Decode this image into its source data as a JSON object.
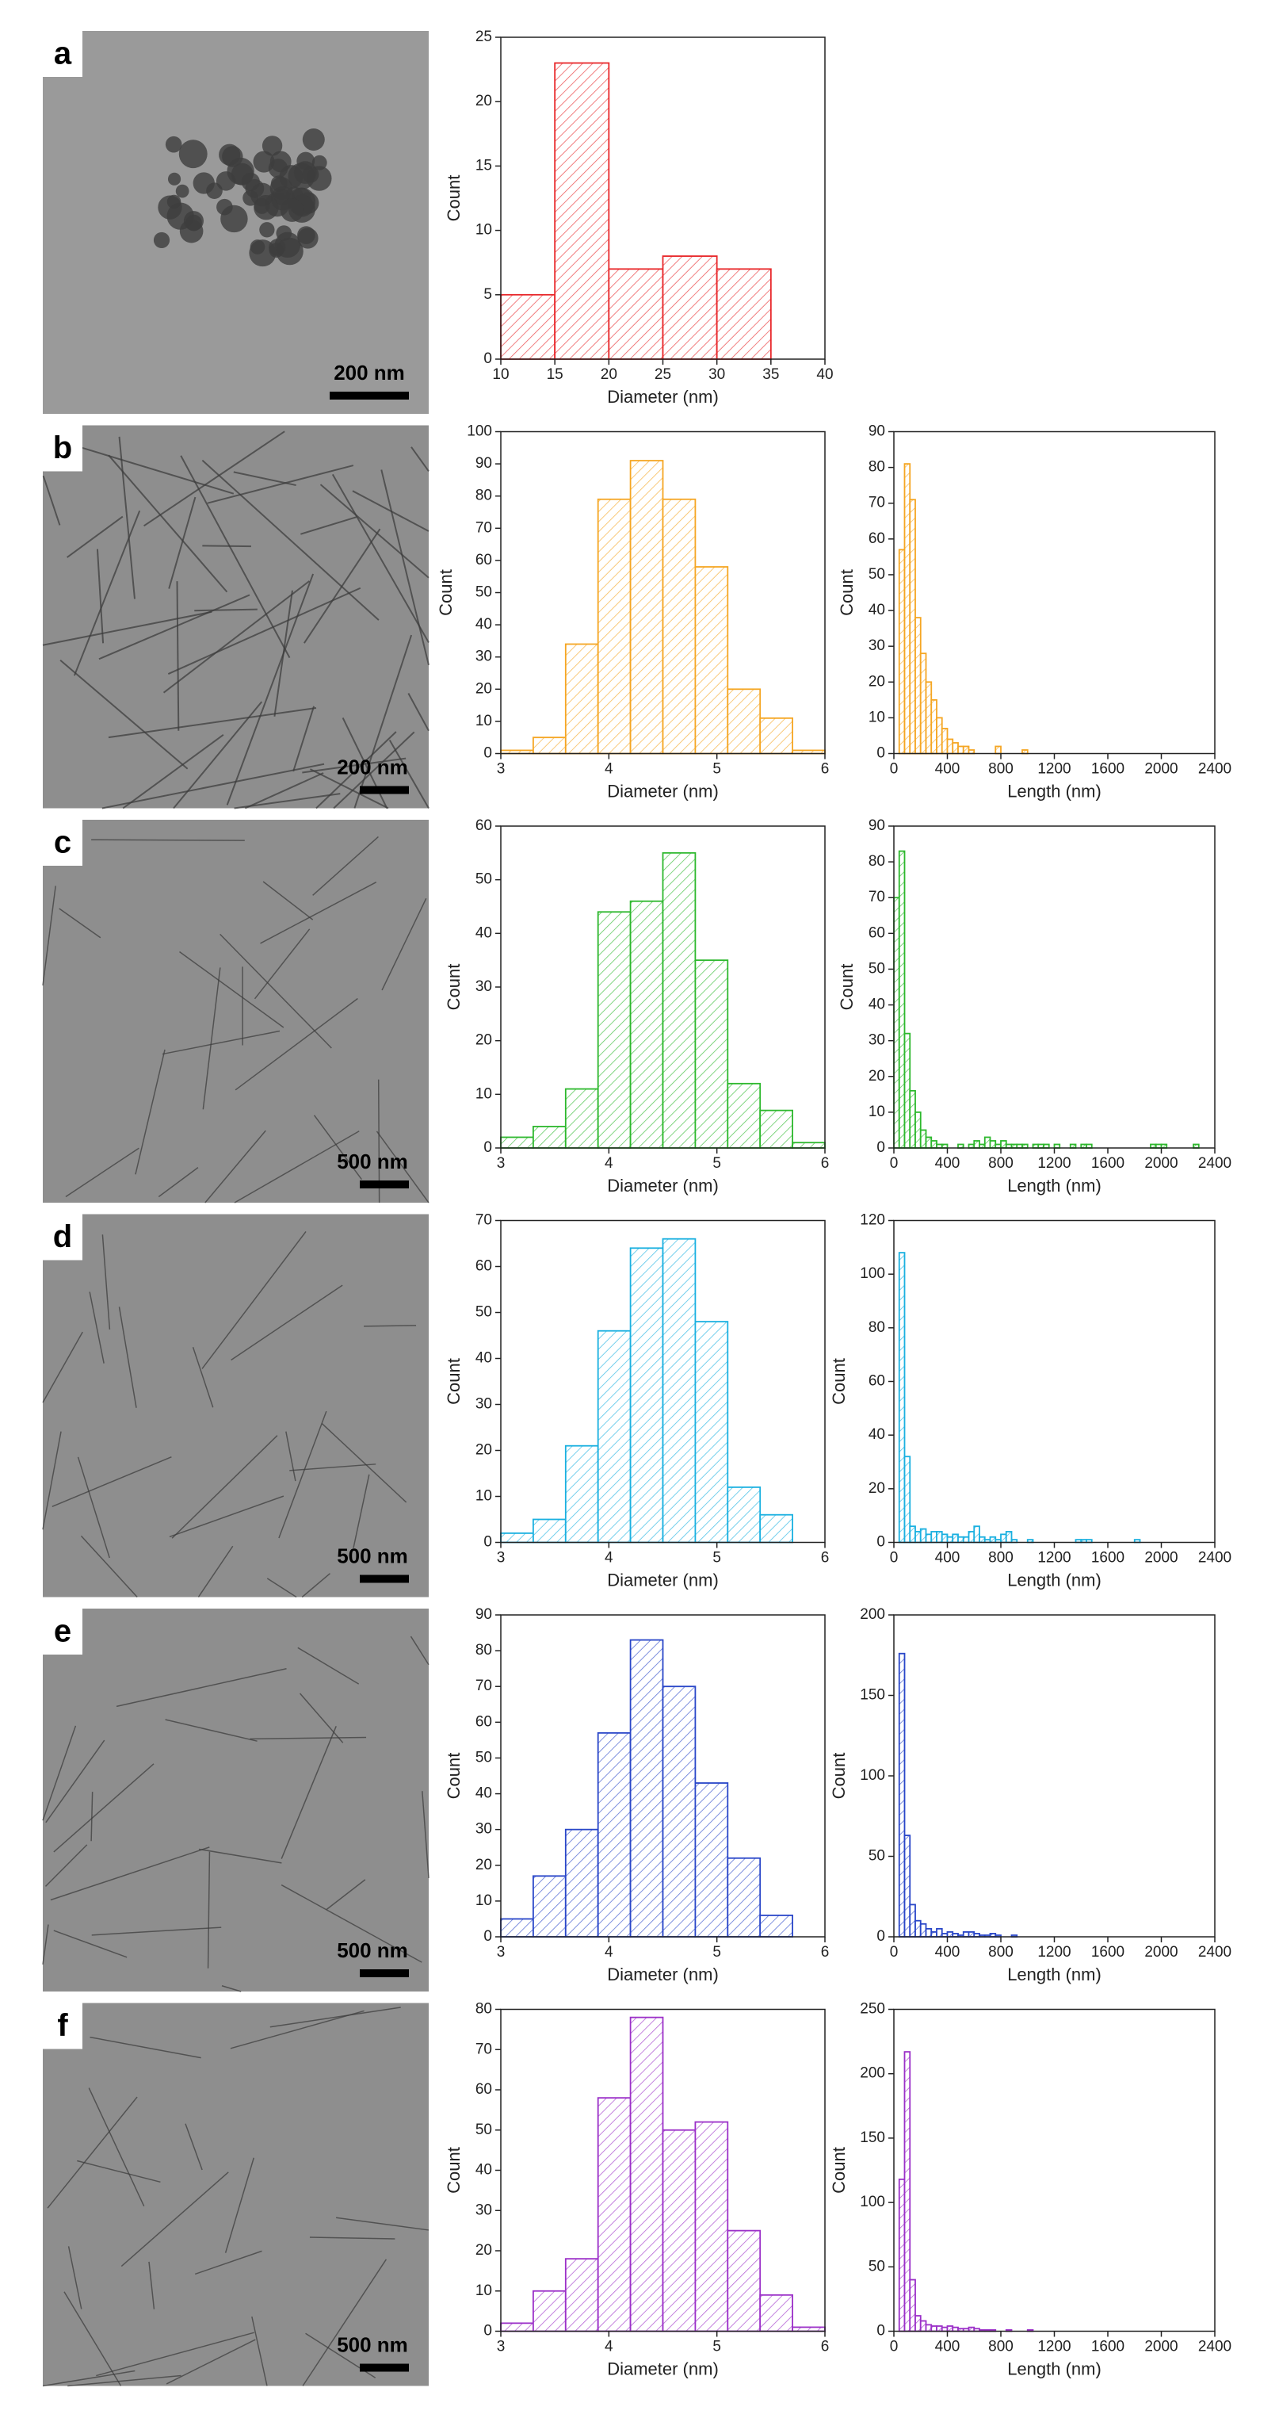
{
  "panels": [
    {
      "label": "a",
      "scale_bar": "200 nm"
    },
    {
      "label": "b",
      "scale_bar": "200 nm"
    },
    {
      "label": "c",
      "scale_bar": "500 nm"
    },
    {
      "label": "d",
      "scale_bar": "500 nm"
    },
    {
      "label": "e",
      "scale_bar": "500 nm"
    },
    {
      "label": "f",
      "scale_bar": "500 nm"
    }
  ],
  "chart_data": [
    {
      "type": "histogram",
      "xlabel": "Diameter (nm)",
      "ylabel": "Count",
      "color": "#e8272a",
      "bins": [
        10,
        15,
        20,
        25,
        30,
        35
      ],
      "counts": [
        5,
        23,
        7,
        8,
        7
      ],
      "xlim": [
        10,
        40
      ],
      "xticks": [
        10,
        15,
        20,
        25,
        30,
        35,
        40
      ],
      "ylim": [
        0,
        25
      ],
      "yticks": [
        0,
        5,
        10,
        15,
        20,
        25
      ]
    },
    {
      "type": "histogram",
      "xlabel": "Diameter (nm)",
      "ylabel": "Count",
      "color": "#f5a623",
      "bins": [
        3.0,
        3.3,
        3.6,
        3.9,
        4.2,
        4.5,
        4.8,
        5.1,
        5.4,
        5.7,
        6.0
      ],
      "counts": [
        1,
        5,
        34,
        79,
        91,
        79,
        58,
        20,
        11,
        1
      ],
      "xlim": [
        3,
        6
      ],
      "xticks": [
        3,
        4,
        5,
        6
      ],
      "ylim": [
        0,
        100
      ],
      "yticks": [
        0,
        10,
        20,
        30,
        40,
        50,
        60,
        70,
        80,
        90,
        100
      ]
    },
    {
      "type": "histogram",
      "xlabel": "Length (nm)",
      "ylabel": "Count",
      "color": "#f5a623",
      "bins": [
        40,
        80,
        120,
        160,
        200,
        240,
        280,
        320,
        360,
        400,
        440,
        480,
        520,
        560,
        600,
        640,
        680,
        720,
        760,
        800,
        840,
        880,
        920,
        960,
        1000
      ],
      "counts": [
        57,
        81,
        71,
        38,
        28,
        20,
        15,
        10,
        7,
        4,
        3,
        2,
        2,
        1,
        0,
        0,
        0,
        0,
        2,
        0,
        0,
        0,
        0,
        1
      ],
      "xlim": [
        0,
        2400
      ],
      "xticks": [
        0,
        400,
        800,
        1200,
        1600,
        2000,
        2400
      ],
      "ylim": [
        0,
        90
      ],
      "yticks": [
        0,
        10,
        20,
        30,
        40,
        50,
        60,
        70,
        80,
        90
      ]
    },
    {
      "type": "histogram",
      "xlabel": "Diameter (nm)",
      "ylabel": "Count",
      "color": "#2db82d",
      "bins": [
        3.0,
        3.3,
        3.6,
        3.9,
        4.2,
        4.5,
        4.8,
        5.1,
        5.4,
        5.7,
        6.0
      ],
      "counts": [
        2,
        4,
        11,
        44,
        46,
        55,
        35,
        12,
        7,
        1
      ],
      "xlim": [
        3,
        6
      ],
      "xticks": [
        3,
        4,
        5,
        6
      ],
      "ylim": [
        0,
        60
      ],
      "yticks": [
        0,
        10,
        20,
        30,
        40,
        50,
        60
      ]
    },
    {
      "type": "histogram",
      "xlabel": "Length (nm)",
      "ylabel": "Count",
      "color": "#2db82d",
      "bins": [
        0,
        40,
        80,
        120,
        160,
        200,
        240,
        280,
        320,
        360,
        400,
        440,
        480,
        520,
        560,
        600,
        640,
        680,
        720,
        760,
        800,
        840,
        880,
        920,
        960,
        1000,
        1040,
        1080,
        1120,
        1160,
        1200,
        1240,
        1280,
        1320,
        1360,
        1400,
        1440,
        1480,
        1520,
        1560,
        1600,
        1640,
        1680,
        1720,
        1760,
        1800,
        1840,
        1880,
        1920,
        1960,
        2000,
        2040,
        2080,
        2120,
        2160,
        2200,
        2240,
        2280,
        2320
      ],
      "counts": [
        70,
        83,
        32,
        16,
        10,
        5,
        3,
        2,
        1,
        1,
        0,
        0,
        1,
        0,
        1,
        2,
        1,
        3,
        2,
        1,
        2,
        1,
        1,
        1,
        1,
        0,
        1,
        1,
        1,
        0,
        1,
        0,
        0,
        1,
        0,
        1,
        1,
        0,
        0,
        0,
        0,
        0,
        0,
        0,
        0,
        0,
        0,
        0,
        1,
        1,
        1,
        0,
        0,
        0,
        0,
        0,
        1,
        0
      ],
      "xlim": [
        0,
        2400
      ],
      "xticks": [
        0,
        400,
        800,
        1200,
        1600,
        2000,
        2400
      ],
      "ylim": [
        0,
        90
      ],
      "yticks": [
        0,
        10,
        20,
        30,
        40,
        50,
        60,
        70,
        80,
        90
      ]
    },
    {
      "type": "histogram",
      "xlabel": "Diameter (nm)",
      "ylabel": "Count",
      "color": "#1ab0e0",
      "bins": [
        3.0,
        3.3,
        3.6,
        3.9,
        4.2,
        4.5,
        4.8,
        5.1,
        5.4,
        5.7
      ],
      "counts": [
        2,
        5,
        21,
        46,
        64,
        66,
        48,
        12,
        6
      ],
      "xlim": [
        3,
        6
      ],
      "xticks": [
        3,
        4,
        5,
        6
      ],
      "ylim": [
        0,
        70
      ],
      "yticks": [
        0,
        10,
        20,
        30,
        40,
        50,
        60,
        70
      ]
    },
    {
      "type": "histogram",
      "xlabel": "Length (nm)",
      "ylabel": "Count",
      "color": "#1ab0e0",
      "bins": [
        40,
        80,
        120,
        160,
        200,
        240,
        280,
        320,
        360,
        400,
        440,
        480,
        520,
        560,
        600,
        640,
        680,
        720,
        760,
        800,
        840,
        880,
        920,
        960,
        1000,
        1040,
        1080,
        1120,
        1160,
        1200,
        1240,
        1280,
        1320,
        1360,
        1400,
        1440,
        1480,
        1520,
        1560,
        1600,
        1640,
        1680,
        1720,
        1760,
        1800,
        1840
      ],
      "counts": [
        108,
        32,
        6,
        4,
        5,
        3,
        4,
        4,
        3,
        2,
        3,
        2,
        2,
        4,
        6,
        2,
        1,
        2,
        1,
        3,
        4,
        1,
        0,
        0,
        1,
        0,
        0,
        0,
        0,
        0,
        0,
        0,
        0,
        1,
        1,
        1,
        0,
        0,
        0,
        0,
        0,
        0,
        0,
        0,
        1
      ],
      "xlim": [
        0,
        2400
      ],
      "xticks": [
        0,
        400,
        800,
        1200,
        1600,
        2000,
        2400
      ],
      "ylim": [
        0,
        120
      ],
      "yticks": [
        0,
        20,
        40,
        60,
        80,
        100,
        120
      ]
    },
    {
      "type": "histogram",
      "xlabel": "Diameter (nm)",
      "ylabel": "Count",
      "color": "#2946c8",
      "bins": [
        3.0,
        3.3,
        3.6,
        3.9,
        4.2,
        4.5,
        4.8,
        5.1,
        5.4,
        5.7
      ],
      "counts": [
        5,
        17,
        30,
        57,
        83,
        70,
        43,
        22,
        6
      ],
      "xlim": [
        3,
        6
      ],
      "xticks": [
        3,
        4,
        5,
        6
      ],
      "ylim": [
        0,
        90
      ],
      "yticks": [
        0,
        10,
        20,
        30,
        40,
        50,
        60,
        70,
        80,
        90
      ]
    },
    {
      "type": "histogram",
      "xlabel": "Length (nm)",
      "ylabel": "Count",
      "color": "#2946c8",
      "bins": [
        40,
        80,
        120,
        160,
        200,
        240,
        280,
        320,
        360,
        400,
        440,
        480,
        520,
        560,
        600,
        640,
        680,
        720,
        760,
        800,
        840,
        880,
        920
      ],
      "counts": [
        176,
        63,
        20,
        10,
        8,
        5,
        3,
        5,
        2,
        3,
        2,
        1,
        3,
        3,
        2,
        1,
        1,
        2,
        1,
        0,
        0,
        1
      ],
      "xlim": [
        0,
        2400
      ],
      "xticks": [
        0,
        400,
        800,
        1200,
        1600,
        2000,
        2400
      ],
      "ylim": [
        0,
        200
      ],
      "yticks": [
        0,
        50,
        100,
        150,
        200
      ]
    },
    {
      "type": "histogram",
      "xlabel": "Diameter (nm)",
      "ylabel": "Count",
      "color": "#9b30c8",
      "bins": [
        3.0,
        3.3,
        3.6,
        3.9,
        4.2,
        4.5,
        4.8,
        5.1,
        5.4,
        5.7,
        6.0
      ],
      "counts": [
        2,
        10,
        18,
        58,
        78,
        50,
        52,
        25,
        9,
        1
      ],
      "xlim": [
        3,
        6
      ],
      "xticks": [
        3,
        4,
        5,
        6
      ],
      "ylim": [
        0,
        80
      ],
      "yticks": [
        0,
        10,
        20,
        30,
        40,
        50,
        60,
        70,
        80
      ]
    },
    {
      "type": "histogram",
      "xlabel": "Length (nm)",
      "ylabel": "Count",
      "color": "#9b30c8",
      "bins": [
        40,
        80,
        120,
        160,
        200,
        240,
        280,
        320,
        360,
        400,
        440,
        480,
        520,
        560,
        600,
        640,
        680,
        720,
        760,
        800,
        840,
        880,
        920,
        960,
        1000,
        1040
      ],
      "counts": [
        118,
        217,
        40,
        12,
        8,
        5,
        4,
        4,
        3,
        4,
        3,
        2,
        2,
        3,
        2,
        1,
        1,
        1,
        0,
        0,
        1,
        0,
        0,
        0,
        1
      ],
      "xlim": [
        0,
        2400
      ],
      "xticks": [
        0,
        400,
        800,
        1200,
        1600,
        2000,
        2400
      ],
      "ylim": [
        0,
        250
      ],
      "yticks": [
        0,
        50,
        100,
        150,
        200,
        250
      ]
    }
  ]
}
